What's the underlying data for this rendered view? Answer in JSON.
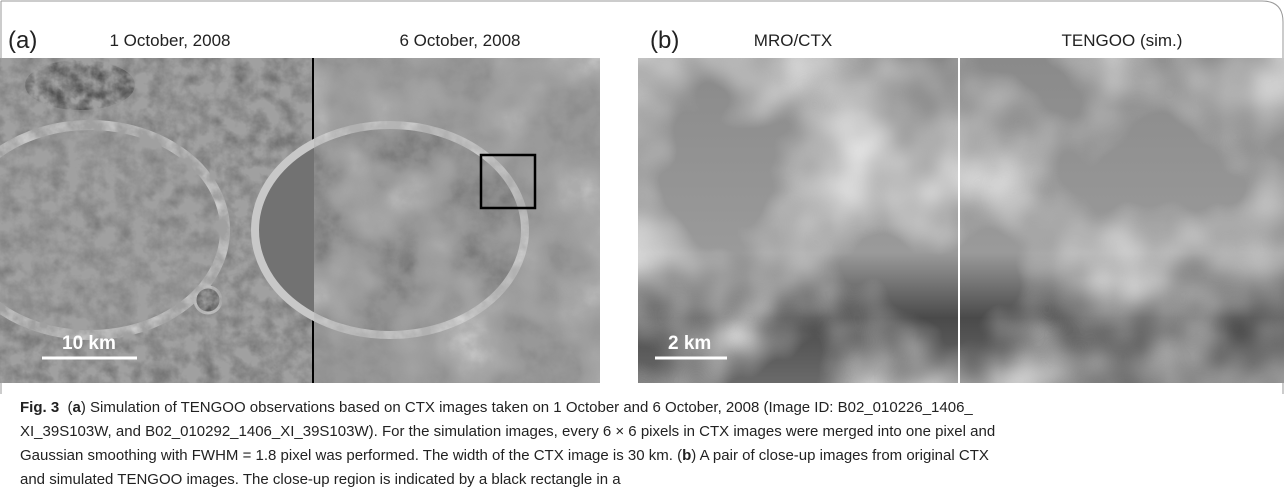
{
  "panels": [
    {
      "label": "(a)",
      "titles": [
        "1 October, 2008",
        "6 October, 2008"
      ],
      "scale_bar": "10 km"
    },
    {
      "label": "(b)",
      "titles": [
        "MRO/CTX",
        "TENGOO (sim.)"
      ],
      "scale_bar": "2 km"
    }
  ],
  "caption": {
    "lines": [
      [
        {
          "text": "Fig. 3",
          "bold": true
        },
        {
          "text": "  (",
          "bold": false
        },
        {
          "text": "a",
          "bold": true
        },
        {
          "text": ") Simulation of TENGOO observations based on CTX images taken on 1 October and 6 October, 2008 (Image ID: B02_010226_1406_",
          "bold": false
        }
      ],
      [
        {
          "text": "XI_39S103W, and B02_010292_1406_XI_39S103W). For the simulation images, every 6 × 6 pixels in CTX images were merged into one pixel and",
          "bold": false
        }
      ],
      [
        {
          "text": "Gaussian smoothing with FWHM = 1.8 pixel was performed. The width of the CTX image is 30 km. (",
          "bold": false
        },
        {
          "text": "b",
          "bold": true
        },
        {
          "text": ") A pair of close-up images from original CTX",
          "bold": false
        }
      ],
      [
        {
          "text": "and simulated TENGOO images. The close-up region is indicated by a black rectangle in a",
          "bold": false
        }
      ]
    ]
  }
}
